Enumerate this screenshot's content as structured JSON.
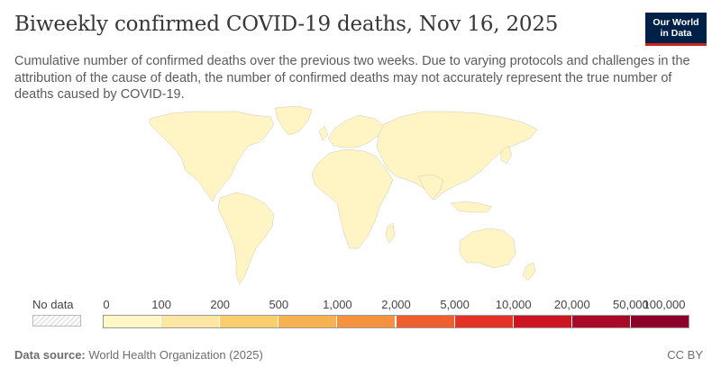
{
  "header": {
    "title": "Biweekly confirmed COVID-19 deaths, Nov 16, 2025",
    "subtitle": "Cumulative number of confirmed deaths over the previous two weeks. Due to varying protocols and challenges in the attribution of the cause of death, the number of confirmed deaths may not accurately represent the true number of deaths caused by COVID-19.",
    "logo_line1": "Our World",
    "logo_line2": "in Data"
  },
  "map": {
    "fill_color": "#fff5c4",
    "border_color": "#c9c9c0"
  },
  "legend": {
    "no_data_label": "No data",
    "labels": [
      "0",
      "100",
      "200",
      "500",
      "1,000",
      "2,000",
      "5,000",
      "10,000",
      "20,000",
      "50,000",
      "100,000"
    ],
    "colors": [
      "#fff7c5",
      "#fde6a1",
      "#fbce6d",
      "#f8b151",
      "#f6913f",
      "#ef5e2f",
      "#e33326",
      "#cc1423",
      "#aa0a27",
      "#8c0029"
    ]
  },
  "footer": {
    "source_label": "Data source:",
    "source_text": "World Health Organization (2025)",
    "license": "CC BY"
  }
}
